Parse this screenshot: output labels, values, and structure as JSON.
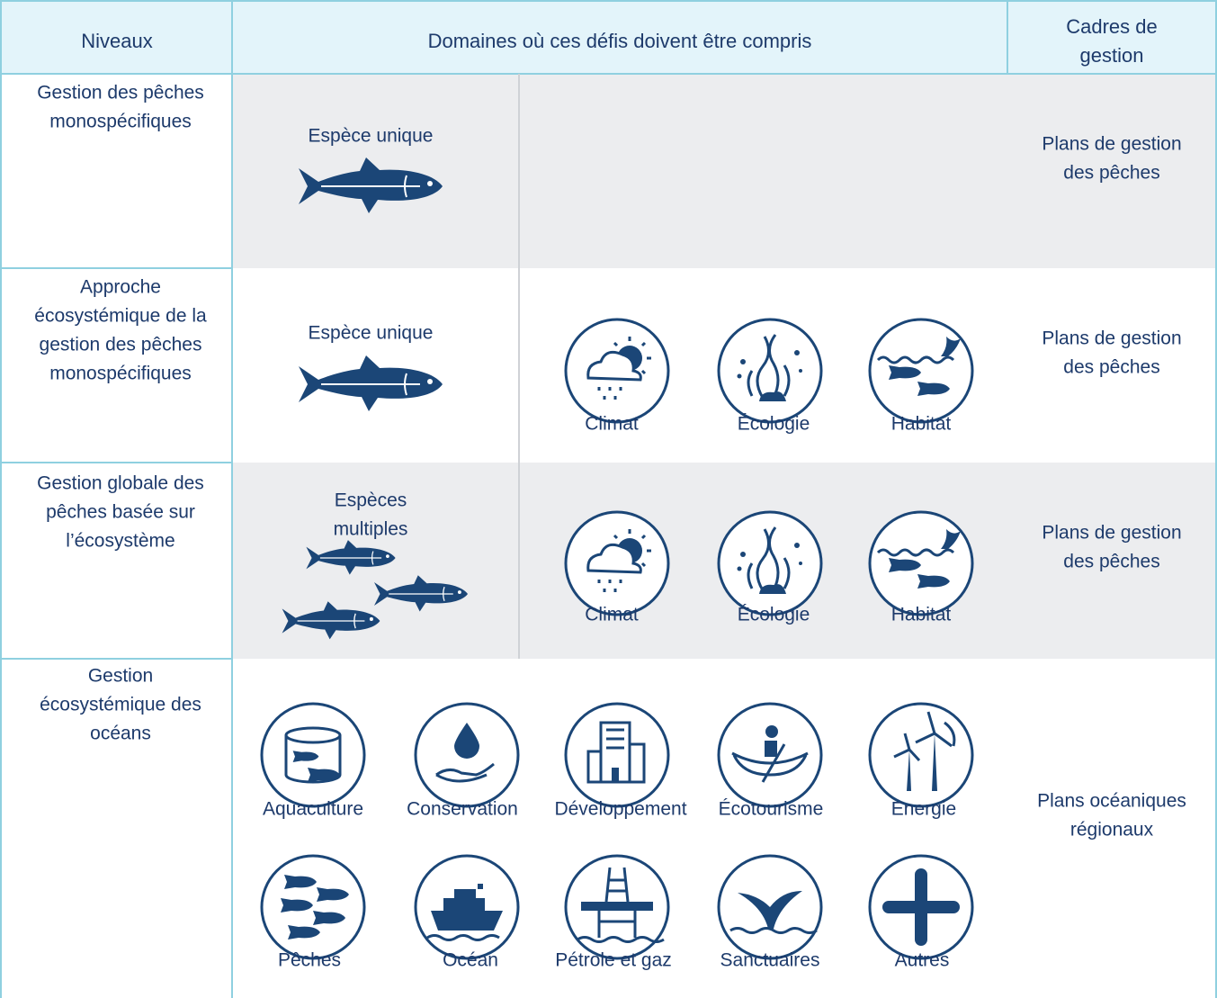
{
  "header": {
    "levels": "Niveaux",
    "domains": "Domaines où ces défis doivent être compris",
    "frameworks": [
      "Cadres de",
      "gestion"
    ]
  },
  "rows": [
    {
      "level": [
        "Gestion des pêches",
        "monospécifiques"
      ],
      "species": [
        "Espèce unique"
      ],
      "framework": [
        "Plans de gestion",
        "des pêches"
      ]
    },
    {
      "level": [
        "Approche",
        "écosystémique de la",
        "gestion des pêches",
        "monospécifiques"
      ],
      "species": [
        "Espèce unique"
      ],
      "domains": [
        "Climat",
        "Écologie",
        "Habitat"
      ],
      "framework": [
        "Plans de gestion",
        "des pêches"
      ]
    },
    {
      "level": [
        "Gestion globale des",
        "pêches basée sur",
        "l’écosystème"
      ],
      "species": [
        "Espèces",
        "multiples"
      ],
      "domains": [
        "Climat",
        "Écologie",
        "Habitat"
      ],
      "framework": [
        "Plans de gestion",
        "des pêches"
      ]
    },
    {
      "level": [
        "Gestion",
        "écosystémique des",
        "océans"
      ],
      "domains": [
        "Aquaculture",
        "Conservation",
        "Développement",
        "Écotourisme",
        "Energie",
        "Pêches",
        "Océan",
        "Pétrole et gaz",
        "Sanctuaires",
        "Autres"
      ],
      "framework": [
        "Plans océaniques",
        "régionaux"
      ]
    }
  ]
}
